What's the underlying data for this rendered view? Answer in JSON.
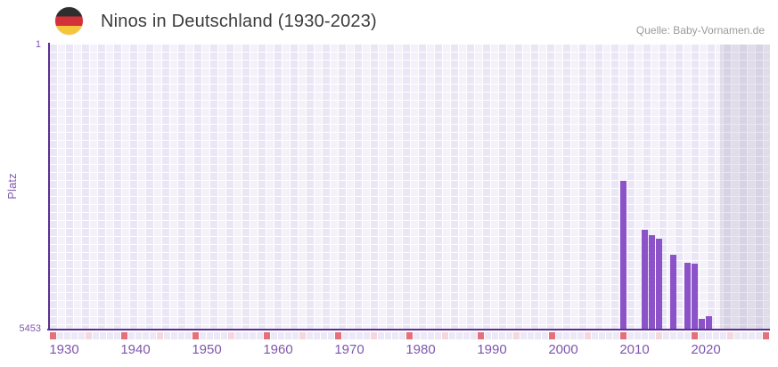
{
  "header": {
    "title": "Ninos in Deutschland (1930-2023)",
    "source": "Quelle: Baby-Vornamen.de",
    "flag_icon": "germany-flag-icon"
  },
  "y_axis": {
    "label": "Platz",
    "top_tick": "1",
    "bottom_tick": "5453"
  },
  "chart_data": {
    "type": "bar",
    "title": "Ninos in Deutschland (1930-2023)",
    "xlabel": "",
    "ylabel": "Platz",
    "y_inverted": true,
    "ylim": [
      1,
      5453
    ],
    "y_tick_labels": [
      "1",
      "5453"
    ],
    "x_range_years": [
      1929,
      2029
    ],
    "x_tick_labels": [
      "1930",
      "1940",
      "1950",
      "1960",
      "1970",
      "1980",
      "1990",
      "2000",
      "2010",
      "2020"
    ],
    "decade_tick_years_red": [
      1929,
      1939,
      1949,
      1959,
      1969,
      1979,
      1989,
      1999,
      2009,
      2019,
      2029
    ],
    "half_decade_tick_years_pink": [
      1934,
      1944,
      1954,
      1964,
      1974,
      1984,
      1994,
      2004,
      2014,
      2024
    ],
    "future_shade_start_year": 2023,
    "grid": true,
    "legend": "none",
    "points": [
      {
        "year": 2009,
        "rank": 2610
      },
      {
        "year": 2012,
        "rank": 3550
      },
      {
        "year": 2013,
        "rank": 3650
      },
      {
        "year": 2014,
        "rank": 3720
      },
      {
        "year": 2016,
        "rank": 4030
      },
      {
        "year": 2018,
        "rank": 4180
      },
      {
        "year": 2019,
        "rank": 4200
      },
      {
        "year": 2020,
        "rank": 5265
      },
      {
        "year": 2021,
        "rank": 5215
      }
    ],
    "colors": {
      "bar": "#8c52c8",
      "axis_line": "#5a3190",
      "axis_text": "#7e56ad",
      "tick_red": "#e4707b",
      "tick_pink": "#f5d7de",
      "grid_cell_a": "#eae6f6",
      "grid_cell_b": "#f4f1fb",
      "strip_cell": "#ece8f6",
      "title_text": "#3b3b3b",
      "source_text": "#9a9a9a"
    }
  }
}
